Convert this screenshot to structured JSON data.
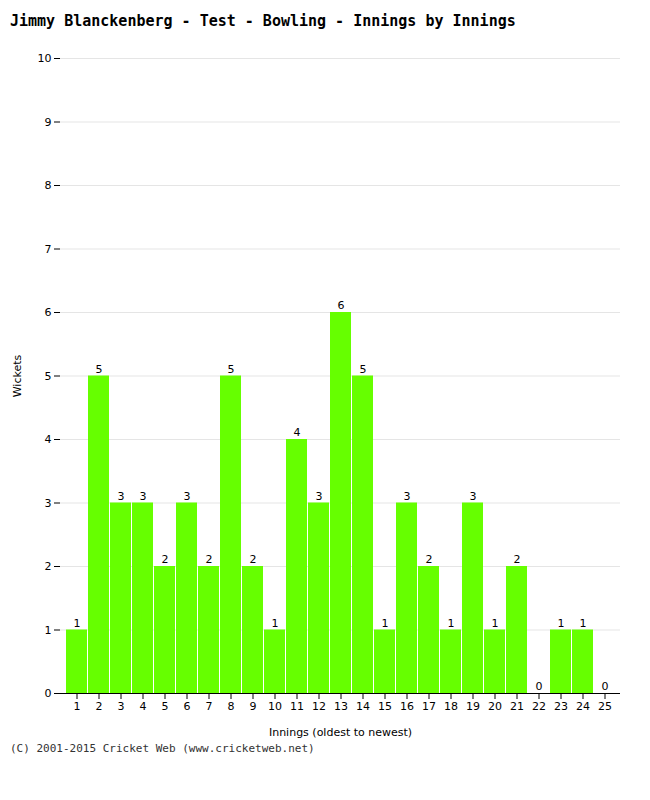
{
  "chart_data": {
    "type": "bar",
    "title": "Jimmy Blanckenberg - Test - Bowling - Innings by Innings",
    "xlabel": "Innings (oldest to newest)",
    "ylabel": "Wickets",
    "categories": [
      "1",
      "2",
      "3",
      "4",
      "5",
      "6",
      "7",
      "8",
      "9",
      "10",
      "11",
      "12",
      "13",
      "14",
      "15",
      "16",
      "17",
      "18",
      "19",
      "20",
      "21",
      "22",
      "23",
      "24",
      "25"
    ],
    "values": [
      1,
      5,
      3,
      3,
      2,
      3,
      2,
      5,
      2,
      1,
      4,
      3,
      6,
      5,
      1,
      3,
      2,
      1,
      3,
      1,
      2,
      0,
      1,
      1,
      0
    ],
    "color": "#66ff00",
    "ylim": [
      0,
      10
    ],
    "yticks": [
      0,
      1,
      2,
      3,
      4,
      5,
      6,
      7,
      8,
      9,
      10
    ],
    "grid": true,
    "data_labels": true,
    "caption": "(C) 2001-2015 Cricket Web (www.cricketweb.net)"
  }
}
